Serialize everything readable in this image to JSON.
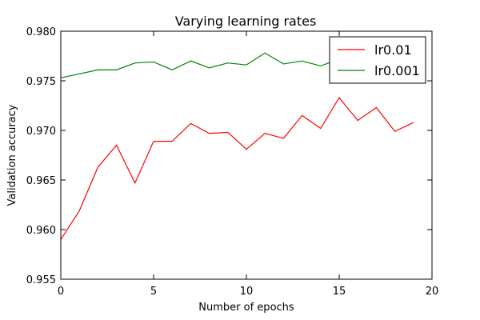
{
  "chart_data": {
    "type": "line",
    "title": "Varying learning rates",
    "xlabel": "Number of epochs",
    "ylabel": "Validation accuracy",
    "xlim": [
      0,
      20
    ],
    "ylim": [
      0.955,
      0.98
    ],
    "x_ticks": [
      0,
      5,
      10,
      15,
      20
    ],
    "x_tick_labels": [
      "0",
      "5",
      "10",
      "15",
      "20"
    ],
    "y_ticks": [
      0.955,
      0.96,
      0.965,
      0.97,
      0.975,
      0.98
    ],
    "y_tick_labels": [
      "0.955",
      "0.960",
      "0.965",
      "0.970",
      "0.975",
      "0.980"
    ],
    "grid": false,
    "legend_position": "top-right",
    "x": [
      0,
      1,
      2,
      3,
      4,
      5,
      6,
      7,
      8,
      9,
      10,
      11,
      12,
      13,
      14,
      15,
      16,
      17,
      18,
      19
    ],
    "series": [
      {
        "name": "lr0.01",
        "color": "#ff0000",
        "values": [
          0.959,
          0.9619,
          0.9663,
          0.9685,
          0.9647,
          0.9689,
          0.9689,
          0.9707,
          0.9697,
          0.9698,
          0.9681,
          0.9697,
          0.9692,
          0.9715,
          0.9702,
          0.9733,
          0.971,
          0.9723,
          0.9699,
          0.9708
        ]
      },
      {
        "name": "lr0.001",
        "color": "#008000",
        "values": [
          0.9753,
          0.9757,
          0.9761,
          0.9761,
          0.9768,
          0.9769,
          0.9761,
          0.977,
          0.9763,
          0.9768,
          0.9766,
          0.9778,
          0.9767,
          0.977,
          0.9765,
          0.9772,
          0.9773,
          0.9771,
          0.977,
          0.9772
        ]
      }
    ]
  }
}
